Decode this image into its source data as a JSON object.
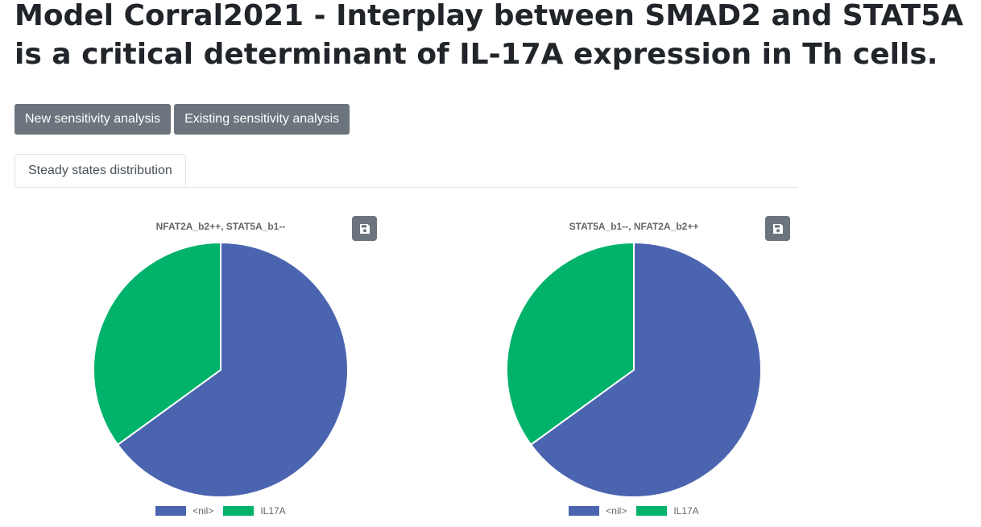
{
  "page": {
    "title": "Model Corral2021 - Interplay between SMAD2 and STAT5A is a critical determinant of IL-17A expression in Th cells."
  },
  "toolbar": {
    "new_analysis_label": "New sensitivity analysis",
    "existing_analysis_label": "Existing sensitivity analysis"
  },
  "tabs": [
    {
      "label": "Steady states distribution",
      "active": true
    }
  ],
  "icons": {
    "save": "floppy-disk-icon"
  },
  "colors": {
    "button_bg": "#6c757d",
    "nil": "#4b64b0",
    "il17a": "#00b26a"
  },
  "chart_data": [
    {
      "type": "pie",
      "title": "NFAT2A_b2++, STAT5A_b1--",
      "categories": [
        "<nil>",
        "IL17A"
      ],
      "values": [
        0.65,
        0.35
      ],
      "colors": [
        "#4b64b0",
        "#00b26a"
      ],
      "legend": "bottom"
    },
    {
      "type": "pie",
      "title": "STAT5A_b1--, NFAT2A_b2++",
      "categories": [
        "<nil>",
        "IL17A"
      ],
      "values": [
        0.65,
        0.35
      ],
      "colors": [
        "#4b64b0",
        "#00b26a"
      ],
      "legend": "bottom"
    }
  ]
}
